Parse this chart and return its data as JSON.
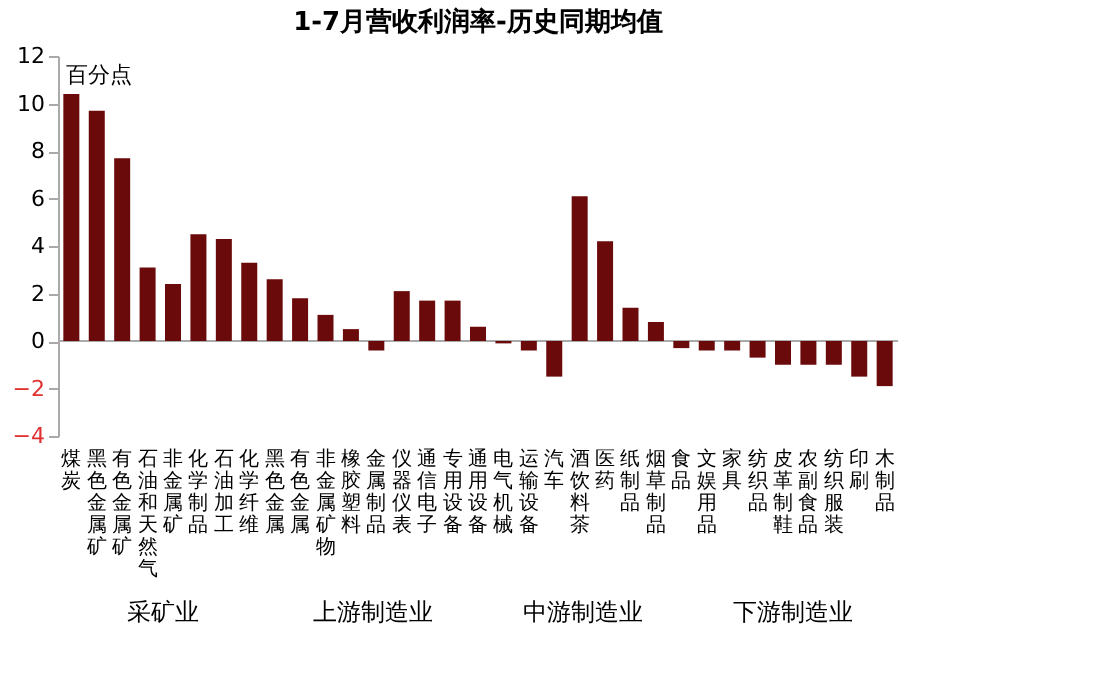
{
  "chart_data": {
    "type": "bar",
    "title": "1-7月营收利润率-历史同期均值",
    "ylabel": "百分点",
    "categories": [
      "煤炭",
      "黑色金属矿",
      "有色金属矿",
      "石油和天然气",
      "非金属矿",
      "化学制品",
      "石油加工",
      "化学纤维",
      "黑色金属",
      "有色金属",
      "非金属矿物",
      "橡胶塑料",
      "金属制品",
      "仪器仪表",
      "通信电子",
      "专用设备",
      "通用设备",
      "电气机械",
      "运输设备",
      "汽车",
      "酒饮料茶",
      "医药",
      "纸制品",
      "烟草制品",
      "食品",
      "文娱用品",
      "家具",
      "纺织品",
      "皮革制鞋",
      "农副食品",
      "纺织服装",
      "印刷",
      "木制品"
    ],
    "series": [
      {
        "color": "#6b0a0a",
        "values": [
          10.4,
          9.7,
          7.7,
          3.1,
          2.4,
          4.5,
          4.3,
          3.3,
          2.6,
          1.8,
          1.1,
          0.5,
          -0.4,
          2.1,
          1.7,
          1.7,
          0.6,
          -0.1,
          -0.4,
          -1.5,
          6.1,
          4.2,
          1.4,
          0.8,
          -0.3,
          -0.4,
          -0.4,
          -0.7,
          -1.0,
          -1.0,
          -1.0,
          -1.5,
          -1.9
        ]
      }
    ],
    "ylim": [
      -4,
      12
    ],
    "yticks": [
      -4,
      -2,
      0,
      2,
      4,
      6,
      8,
      10,
      12
    ],
    "annotations": [
      "采矿业",
      "上游制造业",
      "中游制造业",
      "下游制造业"
    ]
  }
}
